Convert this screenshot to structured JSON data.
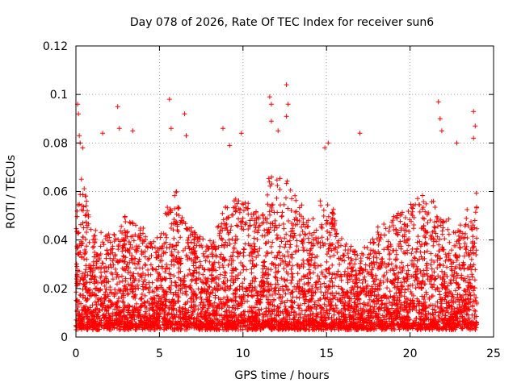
{
  "chart_data": {
    "type": "scatter",
    "title": "Day 078 of 2026, Rate Of TEC Index for receiver sun6",
    "xlabel": "GPS time / hours",
    "ylabel": "ROTI / TECUs",
    "xlim": [
      0,
      25
    ],
    "ylim": [
      0,
      0.12
    ],
    "x_ticks": [
      0,
      5,
      10,
      15,
      20,
      25
    ],
    "y_ticks": [
      0,
      0.02,
      0.04,
      0.06,
      0.08,
      0.1,
      0.12
    ],
    "x_tick_labels": [
      "0",
      "5",
      "10",
      "15",
      "20",
      "25"
    ],
    "y_tick_labels": [
      "0",
      "0.02",
      "0.04",
      "0.06",
      "0.08",
      "0.1",
      "0.12"
    ],
    "grid": true,
    "marker": "plus",
    "marker_color": "#ff0000",
    "series": [
      {
        "x_start": 0.0,
        "x_end": 24.0,
        "envelope_hours": [
          0,
          0.3,
          1,
          2,
          3,
          4,
          5,
          5.5,
          6,
          6.5,
          7,
          8,
          9,
          10,
          11,
          11.5,
          12,
          12.5,
          13,
          14,
          15,
          16,
          17,
          18,
          19,
          20,
          21,
          21.5,
          22,
          23,
          24
        ],
        "envelope_typical_max": [
          0.05,
          0.07,
          0.045,
          0.042,
          0.05,
          0.045,
          0.04,
          0.055,
          0.06,
          0.05,
          0.045,
          0.04,
          0.055,
          0.06,
          0.05,
          0.065,
          0.07,
          0.065,
          0.06,
          0.05,
          0.06,
          0.04,
          0.035,
          0.045,
          0.05,
          0.055,
          0.06,
          0.055,
          0.05,
          0.045,
          0.06
        ],
        "outliers": [
          {
            "x": 0.1,
            "y": 0.096
          },
          {
            "x": 0.15,
            "y": 0.092
          },
          {
            "x": 0.2,
            "y": 0.083
          },
          {
            "x": 0.25,
            "y": 0.08
          },
          {
            "x": 0.4,
            "y": 0.078
          },
          {
            "x": 2.5,
            "y": 0.095
          },
          {
            "x": 1.6,
            "y": 0.084
          },
          {
            "x": 2.6,
            "y": 0.086
          },
          {
            "x": 3.4,
            "y": 0.085
          },
          {
            "x": 5.6,
            "y": 0.098
          },
          {
            "x": 6.5,
            "y": 0.092
          },
          {
            "x": 5.7,
            "y": 0.086
          },
          {
            "x": 6.6,
            "y": 0.083
          },
          {
            "x": 8.8,
            "y": 0.086
          },
          {
            "x": 9.9,
            "y": 0.084
          },
          {
            "x": 11.6,
            "y": 0.099
          },
          {
            "x": 11.7,
            "y": 0.096
          },
          {
            "x": 11.7,
            "y": 0.089
          },
          {
            "x": 12.6,
            "y": 0.104
          },
          {
            "x": 12.7,
            "y": 0.096
          },
          {
            "x": 12.6,
            "y": 0.091
          },
          {
            "x": 12.1,
            "y": 0.085
          },
          {
            "x": 15.1,
            "y": 0.08
          },
          {
            "x": 17.0,
            "y": 0.084
          },
          {
            "x": 21.7,
            "y": 0.097
          },
          {
            "x": 21.8,
            "y": 0.09
          },
          {
            "x": 21.9,
            "y": 0.085
          },
          {
            "x": 23.8,
            "y": 0.093
          },
          {
            "x": 23.9,
            "y": 0.087
          },
          {
            "x": 23.8,
            "y": 0.082
          },
          {
            "x": 22.8,
            "y": 0.08
          },
          {
            "x": 14.9,
            "y": 0.078
          },
          {
            "x": 9.2,
            "y": 0.079
          }
        ]
      }
    ]
  }
}
